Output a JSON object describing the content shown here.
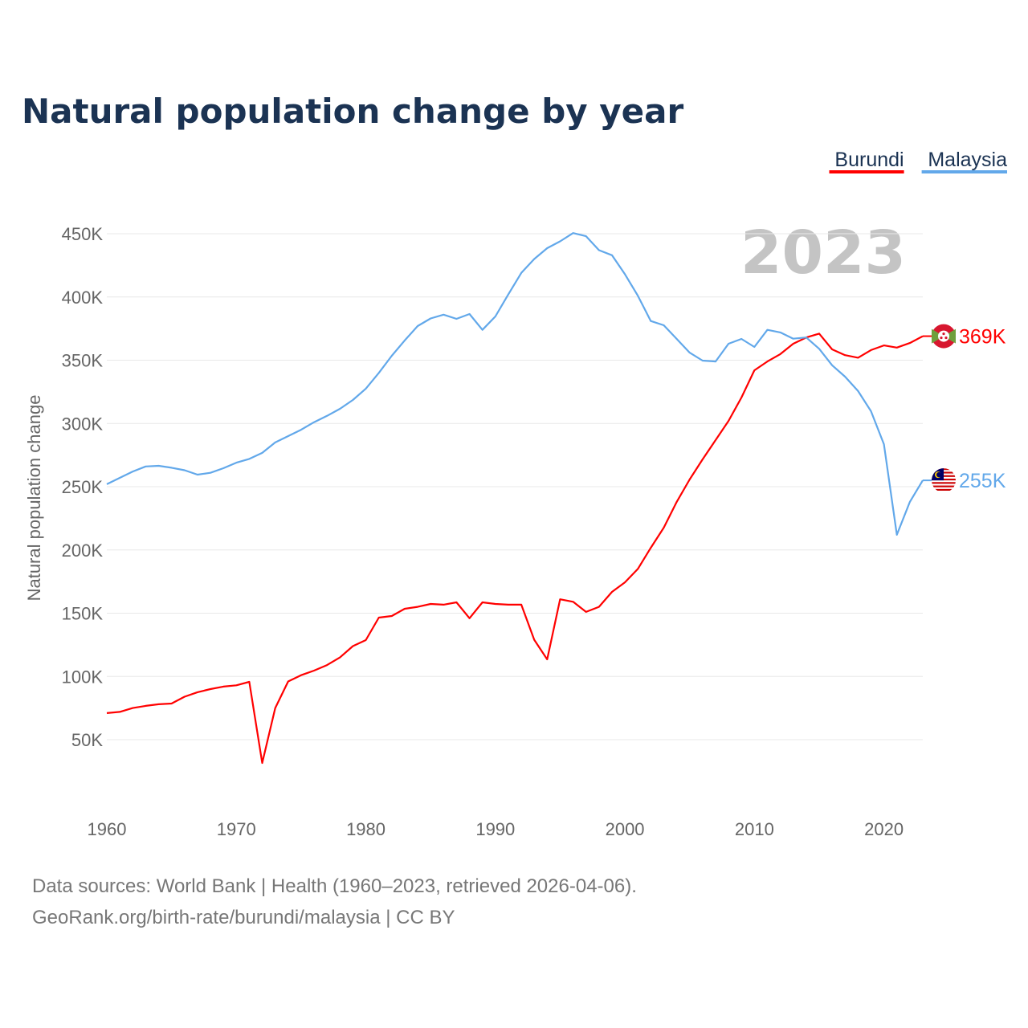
{
  "chart_data": {
    "type": "line",
    "title": "Natural population change by year",
    "ylabel": "Natural population change",
    "xlabel": "",
    "year_watermark": "2023",
    "ylim": [
      0,
      470
    ],
    "xlim": [
      1960,
      2023
    ],
    "y_ticks": [
      {
        "v": 50,
        "label": "50K"
      },
      {
        "v": 100,
        "label": "100K"
      },
      {
        "v": 150,
        "label": "150K"
      },
      {
        "v": 200,
        "label": "200K"
      },
      {
        "v": 250,
        "label": "250K"
      },
      {
        "v": 300,
        "label": "300K"
      },
      {
        "v": 350,
        "label": "350K"
      },
      {
        "v": 400,
        "label": "400K"
      },
      {
        "v": 450,
        "label": "450K"
      }
    ],
    "x_ticks": [
      1960,
      1970,
      1980,
      1990,
      2000,
      2010,
      2020
    ],
    "grid": true,
    "legend_position": "top-right",
    "x_start": 1960,
    "series": [
      {
        "name": "Burundi",
        "color": "#ff0000",
        "end_label": "369K",
        "values": [
          71,
          72,
          75,
          76.7,
          78,
          78.6,
          84,
          87.5,
          90,
          92,
          93,
          95.7,
          31.6,
          75,
          96,
          101,
          104.6,
          109,
          115,
          124,
          128.7,
          146.5,
          147.8,
          153.5,
          155,
          157.3,
          156.7,
          158.6,
          146,
          158.6,
          157.3,
          156.7,
          156.7,
          129,
          113.5,
          161,
          159,
          151,
          155,
          166.8,
          174.4,
          185,
          201.7,
          217.6,
          238,
          255.7,
          271.6,
          286.8,
          302,
          320.5,
          342,
          349,
          354.8,
          363,
          368,
          371,
          358.6,
          354,
          352,
          358,
          361.7,
          360,
          363.6,
          369
        ]
      },
      {
        "name": "Malaysia",
        "color": "#62a8ea",
        "end_label": "255K",
        "values": [
          252,
          257,
          262,
          266,
          266.5,
          265,
          263,
          259.5,
          261,
          264.6,
          269,
          272,
          276.7,
          285,
          290,
          295,
          301,
          306,
          311.6,
          318.6,
          327.5,
          340,
          353.5,
          365.6,
          377,
          383,
          386,
          382.7,
          386.5,
          374,
          384.6,
          402,
          419,
          430,
          438.6,
          444,
          450.5,
          448,
          437,
          433,
          418,
          401,
          381,
          377.6,
          366.8,
          356,
          349.7,
          349,
          363,
          366.8,
          360.5,
          374,
          372,
          367,
          368,
          359,
          346,
          337,
          325.6,
          309.7,
          283.6,
          212,
          238,
          255
        ]
      }
    ]
  },
  "footer": {
    "line1": "Data sources: World Bank | Health (1960–2023, retrieved 2026-04-06).",
    "line2": "GeoRank.org/birth-rate/burundi/malaysia | CC BY"
  }
}
